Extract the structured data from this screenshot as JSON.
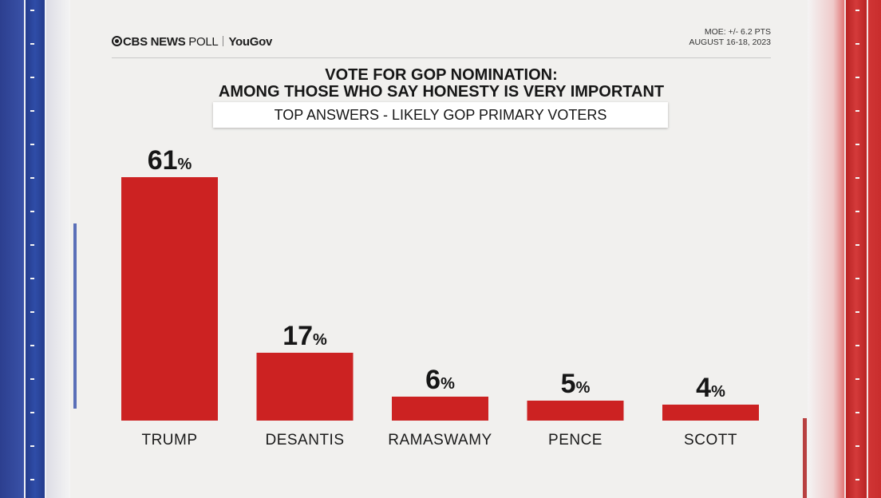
{
  "header": {
    "brand_cbs": "CBS NEWS",
    "brand_poll": " POLL",
    "brand_yougov": "YouGov",
    "moe": "MOE: +/- 6.2 PTS",
    "dates": "AUGUST 16-18, 2023"
  },
  "chart_data": {
    "type": "bar",
    "title_line1": "VOTE FOR GOP NOMINATION:",
    "title_line2": "AMONG THOSE WHO SAY HONESTY IS VERY IMPORTANT",
    "subtitle": "TOP ANSWERS - LIKELY GOP PRIMARY VOTERS",
    "categories": [
      "TRUMP",
      "DESANTIS",
      "RAMASWAMY",
      "PENCE",
      "SCOTT"
    ],
    "values": [
      61,
      17,
      6,
      5,
      4
    ],
    "value_suffix": "%",
    "ylim": [
      0,
      61
    ],
    "bar_color": "#cc2222"
  },
  "colors": {
    "left_band": "#2f4da8",
    "right_band": "#d43a3a"
  }
}
